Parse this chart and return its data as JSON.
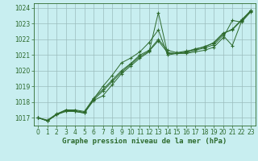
{
  "x_values": [
    0,
    1,
    2,
    3,
    4,
    5,
    6,
    7,
    8,
    9,
    10,
    11,
    12,
    13,
    14,
    15,
    16,
    17,
    18,
    19,
    20,
    21,
    22,
    23
  ],
  "series": [
    [
      1017.0,
      1016.8,
      1017.2,
      1017.5,
      1017.4,
      1017.3,
      1018.2,
      1019.0,
      1019.7,
      1020.5,
      1020.8,
      1021.2,
      1021.8,
      1022.6,
      1021.0,
      1021.1,
      1021.2,
      1021.4,
      1021.5,
      1021.8,
      1022.4,
      1022.6,
      1023.2,
      1023.85
    ],
    [
      1017.0,
      1016.8,
      1017.2,
      1017.4,
      1017.4,
      1017.3,
      1018.1,
      1018.4,
      1019.1,
      1019.8,
      1020.3,
      1020.8,
      1021.2,
      1023.7,
      1021.1,
      1021.1,
      1021.1,
      1021.2,
      1021.3,
      1021.5,
      1022.1,
      1023.2,
      1023.1,
      1023.75
    ],
    [
      1017.0,
      1016.8,
      1017.2,
      1017.45,
      1017.45,
      1017.35,
      1018.15,
      1018.7,
      1019.3,
      1019.9,
      1020.4,
      1020.9,
      1021.25,
      1021.9,
      1021.15,
      1021.1,
      1021.15,
      1021.3,
      1021.45,
      1021.65,
      1022.25,
      1021.6,
      1023.15,
      1023.8
    ],
    [
      1017.0,
      1016.85,
      1017.25,
      1017.5,
      1017.5,
      1017.4,
      1018.25,
      1018.8,
      1019.4,
      1020.0,
      1020.45,
      1021.0,
      1021.3,
      1022.0,
      1021.3,
      1021.15,
      1021.25,
      1021.35,
      1021.55,
      1021.75,
      1022.35,
      1022.65,
      1023.25,
      1023.82
    ]
  ],
  "line_color": "#2d6a2d",
  "marker": "+",
  "marker_size": 3,
  "ylim": [
    1016.5,
    1024.3
  ],
  "yticks": [
    1017,
    1018,
    1019,
    1020,
    1021,
    1022,
    1023,
    1024
  ],
  "xticks": [
    0,
    1,
    2,
    3,
    4,
    5,
    6,
    7,
    8,
    9,
    10,
    11,
    12,
    13,
    14,
    15,
    16,
    17,
    18,
    19,
    20,
    21,
    22,
    23
  ],
  "xlabel": "Graphe pression niveau de la mer (hPa)",
  "bg_color": "#c8eef0",
  "grid_major_color": "#9bbcbd",
  "grid_minor_color": "#b8d8da",
  "linewidth": 0.7,
  "tick_fontsize": 5.5,
  "xlabel_fontsize": 6.5
}
